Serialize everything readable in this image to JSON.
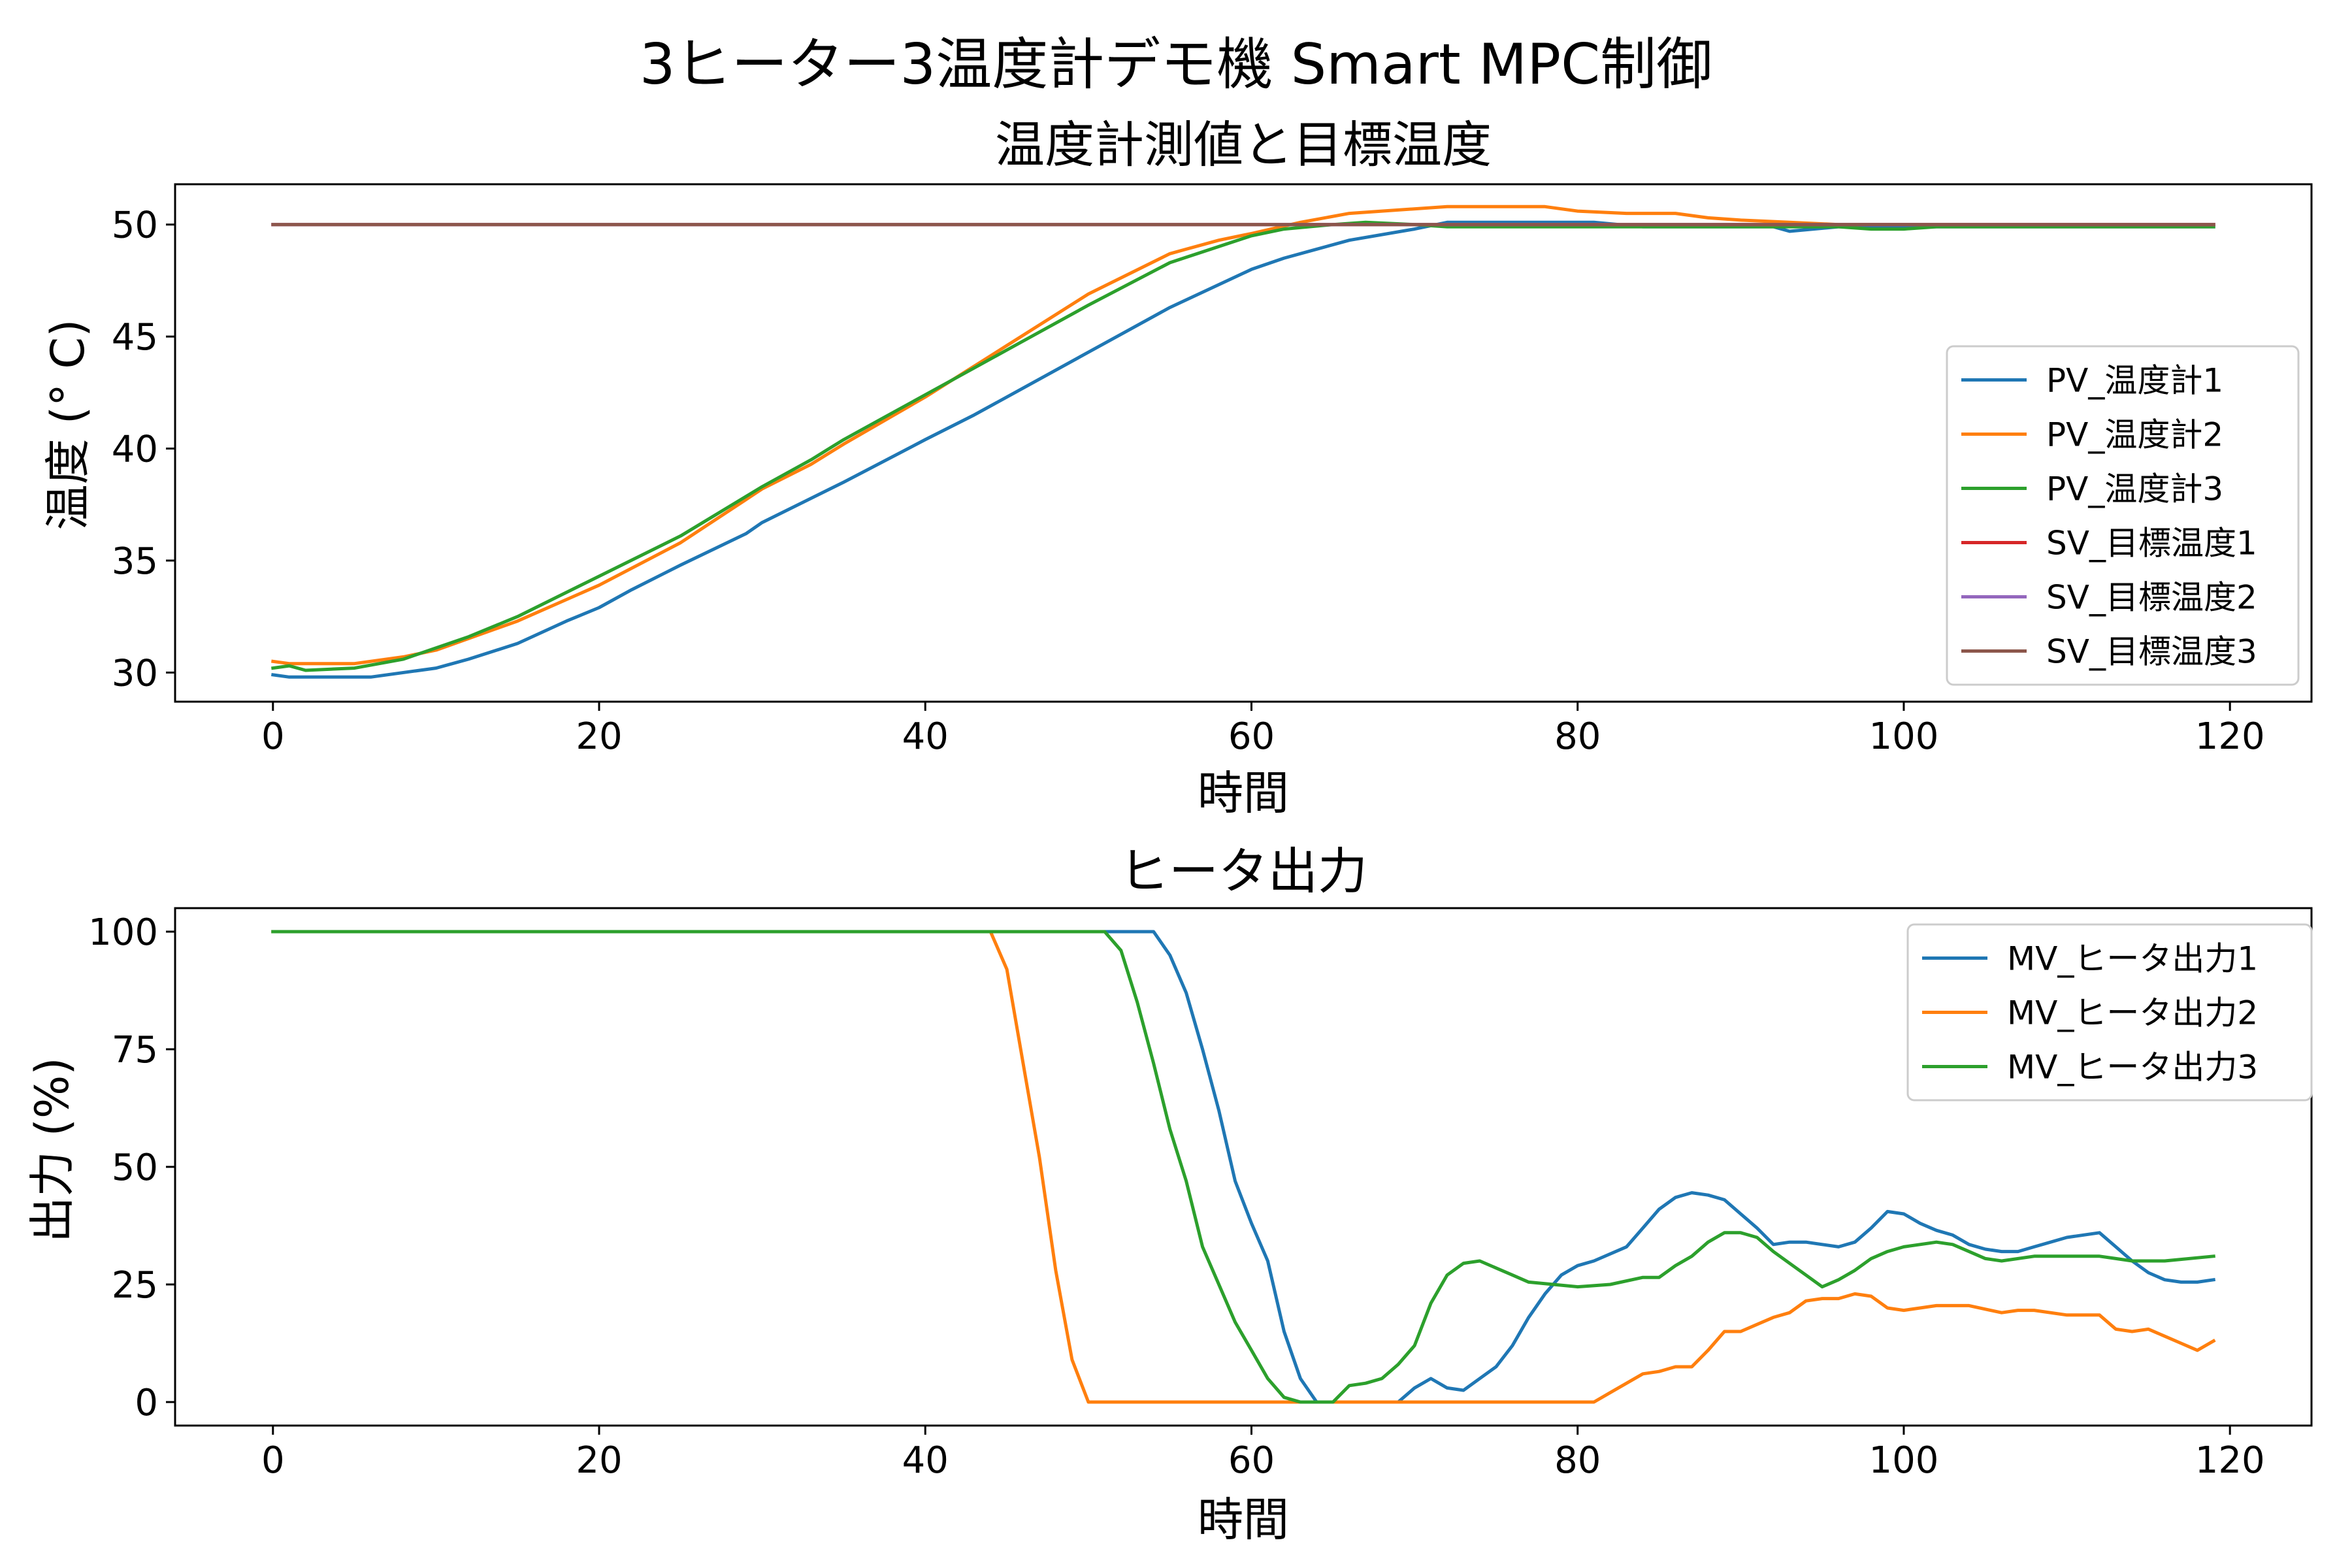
{
  "figure": {
    "suptitle": "3ヒーター3温度計デモ機 Smart MPC制御"
  },
  "chart_data": [
    {
      "type": "line",
      "title": "温度計測値と目標温度",
      "xlabel": "時間",
      "ylabel": "温度 (° C)",
      "xlim": [
        -6,
        125
      ],
      "ylim": [
        28.7,
        51.8
      ],
      "xticks": [
        0,
        20,
        40,
        60,
        80,
        100,
        120
      ],
      "yticks": [
        30,
        35,
        40,
        45,
        50
      ],
      "legend_position": "center-right",
      "series": [
        {
          "name": "PV_温度計1",
          "color": "#1f77b4",
          "points": [
            [
              0,
              29.9
            ],
            [
              1,
              29.8
            ],
            [
              6,
              29.8
            ],
            [
              10,
              30.2
            ],
            [
              12,
              30.6
            ],
            [
              15,
              31.3
            ],
            [
              18,
              32.3
            ],
            [
              20,
              32.9
            ],
            [
              22,
              33.7
            ],
            [
              25,
              34.8
            ],
            [
              29,
              36.2
            ],
            [
              30,
              36.7
            ],
            [
              35,
              38.5
            ],
            [
              40,
              40.4
            ],
            [
              43,
              41.5
            ],
            [
              45,
              42.3
            ],
            [
              50,
              44.3
            ],
            [
              55,
              46.3
            ],
            [
              60,
              48.0
            ],
            [
              62,
              48.5
            ],
            [
              66,
              49.3
            ],
            [
              70,
              49.8
            ],
            [
              72,
              50.1
            ],
            [
              81,
              50.1
            ],
            [
              84,
              49.9
            ],
            [
              92,
              49.9
            ],
            [
              93,
              49.7
            ],
            [
              96,
              49.9
            ],
            [
              119,
              49.9
            ]
          ]
        },
        {
          "name": "PV_温度計2",
          "color": "#ff7f0e",
          "points": [
            [
              0,
              30.5
            ],
            [
              1,
              30.4
            ],
            [
              5,
              30.4
            ],
            [
              8,
              30.7
            ],
            [
              10,
              31.0
            ],
            [
              15,
              32.3
            ],
            [
              20,
              33.9
            ],
            [
              25,
              35.8
            ],
            [
              30,
              38.2
            ],
            [
              33,
              39.3
            ],
            [
              35,
              40.2
            ],
            [
              40,
              42.3
            ],
            [
              45,
              44.6
            ],
            [
              50,
              46.9
            ],
            [
              55,
              48.7
            ],
            [
              56,
              48.9
            ],
            [
              58,
              49.3
            ],
            [
              60,
              49.6
            ],
            [
              63,
              50.1
            ],
            [
              66,
              50.5
            ],
            [
              68,
              50.6
            ],
            [
              72,
              50.8
            ],
            [
              78,
              50.8
            ],
            [
              80,
              50.6
            ],
            [
              83,
              50.5
            ],
            [
              86,
              50.5
            ],
            [
              88,
              50.3
            ],
            [
              90,
              50.2
            ],
            [
              93,
              50.1
            ],
            [
              96,
              50.0
            ],
            [
              119,
              50.0
            ]
          ]
        },
        {
          "name": "PV_温度計3",
          "color": "#2ca02c",
          "points": [
            [
              0,
              30.2
            ],
            [
              1,
              30.3
            ],
            [
              2,
              30.1
            ],
            [
              5,
              30.2
            ],
            [
              8,
              30.6
            ],
            [
              10,
              31.1
            ],
            [
              12,
              31.6
            ],
            [
              15,
              32.5
            ],
            [
              20,
              34.3
            ],
            [
              25,
              36.1
            ],
            [
              30,
              38.3
            ],
            [
              33,
              39.5
            ],
            [
              35,
              40.4
            ],
            [
              40,
              42.4
            ],
            [
              45,
              44.4
            ],
            [
              50,
              46.4
            ],
            [
              55,
              48.3
            ],
            [
              60,
              49.5
            ],
            [
              62,
              49.8
            ],
            [
              65,
              50.0
            ],
            [
              67,
              50.1
            ],
            [
              70,
              50.0
            ],
            [
              72,
              49.9
            ],
            [
              96,
              49.9
            ],
            [
              98,
              49.8
            ],
            [
              100,
              49.8
            ],
            [
              102,
              49.9
            ],
            [
              119,
              49.9
            ]
          ]
        },
        {
          "name": "SV_目標温度1",
          "color": "#d62728",
          "points": [
            [
              0,
              50
            ],
            [
              119,
              50
            ]
          ]
        },
        {
          "name": "SV_目標温度2",
          "color": "#9467bd",
          "points": [
            [
              0,
              50
            ],
            [
              119,
              50
            ]
          ]
        },
        {
          "name": "SV_目標温度3",
          "color": "#8c564b",
          "points": [
            [
              0,
              50
            ],
            [
              119,
              50
            ]
          ]
        }
      ]
    },
    {
      "type": "line",
      "title": "ヒータ出力",
      "xlabel": "時間",
      "ylabel": "出力 (%)",
      "xlim": [
        -6,
        125
      ],
      "ylim": [
        -5,
        105
      ],
      "xticks": [
        0,
        20,
        40,
        60,
        80,
        100,
        120
      ],
      "yticks": [
        0,
        25,
        50,
        75,
        100
      ],
      "legend_position": "top-right",
      "series": [
        {
          "name": "MV_ヒータ出力1",
          "color": "#1f77b4",
          "points": [
            [
              0,
              100
            ],
            [
              54,
              100
            ],
            [
              55,
              95
            ],
            [
              56,
              87
            ],
            [
              57,
              75
            ],
            [
              58,
              62
            ],
            [
              59,
              47
            ],
            [
              60,
              38
            ],
            [
              61,
              30
            ],
            [
              62,
              15
            ],
            [
              63,
              5
            ],
            [
              64,
              0
            ],
            [
              69,
              0
            ],
            [
              70,
              3
            ],
            [
              71,
              5
            ],
            [
              72,
              3
            ],
            [
              73,
              2.5
            ],
            [
              74,
              5
            ],
            [
              75,
              7.5
            ],
            [
              76,
              12
            ],
            [
              77,
              18
            ],
            [
              78,
              23
            ],
            [
              79,
              27
            ],
            [
              80,
              29
            ],
            [
              81,
              30
            ],
            [
              83,
              33
            ],
            [
              84,
              37
            ],
            [
              85,
              41
            ],
            [
              86,
              43.5
            ],
            [
              87,
              44.5
            ],
            [
              88,
              44
            ],
            [
              89,
              43
            ],
            [
              90,
              40
            ],
            [
              91,
              37
            ],
            [
              92,
              33.5
            ],
            [
              93,
              34
            ],
            [
              94,
              34
            ],
            [
              95,
              33.5
            ],
            [
              96,
              33
            ],
            [
              97,
              34
            ],
            [
              98,
              37
            ],
            [
              99,
              40.5
            ],
            [
              100,
              40
            ],
            [
              101,
              38
            ],
            [
              102,
              36.5
            ],
            [
              103,
              35.5
            ],
            [
              104,
              33.5
            ],
            [
              105,
              32.5
            ],
            [
              106,
              32
            ],
            [
              107,
              32
            ],
            [
              108,
              33
            ],
            [
              110,
              35
            ],
            [
              112,
              36
            ],
            [
              113,
              33
            ],
            [
              114,
              30
            ],
            [
              115,
              27.5
            ],
            [
              116,
              26
            ],
            [
              117,
              25.5
            ],
            [
              118,
              25.5
            ],
            [
              119,
              26
            ]
          ]
        },
        {
          "name": "MV_ヒータ出力2",
          "color": "#ff7f0e",
          "points": [
            [
              0,
              100
            ],
            [
              44,
              100
            ],
            [
              45,
              92
            ],
            [
              46,
              72
            ],
            [
              47,
              52
            ],
            [
              48,
              28
            ],
            [
              49,
              9
            ],
            [
              50,
              0
            ],
            [
              81,
              0
            ],
            [
              82,
              2
            ],
            [
              83,
              4
            ],
            [
              84,
              6
            ],
            [
              85,
              6.5
            ],
            [
              86,
              7.5
            ],
            [
              87,
              7.5
            ],
            [
              88,
              11
            ],
            [
              89,
              15
            ],
            [
              90,
              15
            ],
            [
              91,
              16.5
            ],
            [
              92,
              18
            ],
            [
              93,
              19
            ],
            [
              94,
              21.5
            ],
            [
              95,
              22
            ],
            [
              96,
              22
            ],
            [
              97,
              23
            ],
            [
              98,
              22.5
            ],
            [
              99,
              20
            ],
            [
              100,
              19.5
            ],
            [
              101,
              20
            ],
            [
              102,
              20.5
            ],
            [
              104,
              20.5
            ],
            [
              106,
              19
            ],
            [
              107,
              19.5
            ],
            [
              108,
              19.5
            ],
            [
              110,
              18.5
            ],
            [
              112,
              18.5
            ],
            [
              113,
              15.5
            ],
            [
              114,
              15
            ],
            [
              115,
              15.5
            ],
            [
              116,
              14
            ],
            [
              117,
              12.5
            ],
            [
              118,
              11
            ],
            [
              119,
              13
            ]
          ]
        },
        {
          "name": "MV_ヒータ出力3",
          "color": "#2ca02c",
          "points": [
            [
              0,
              100
            ],
            [
              51,
              100
            ],
            [
              52,
              96
            ],
            [
              53,
              85
            ],
            [
              54,
              72
            ],
            [
              55,
              58
            ],
            [
              56,
              47
            ],
            [
              57,
              33
            ],
            [
              58,
              25
            ],
            [
              59,
              17
            ],
            [
              60,
              11
            ],
            [
              61,
              5
            ],
            [
              62,
              1
            ],
            [
              63,
              0
            ],
            [
              65,
              0
            ],
            [
              66,
              3.5
            ],
            [
              67,
              4
            ],
            [
              68,
              5
            ],
            [
              69,
              8
            ],
            [
              70,
              12
            ],
            [
              71,
              21
            ],
            [
              72,
              27
            ],
            [
              73,
              29.5
            ],
            [
              74,
              30
            ],
            [
              75,
              28.5
            ],
            [
              76,
              27
            ],
            [
              77,
              25.5
            ],
            [
              80,
              24.5
            ],
            [
              82,
              25
            ],
            [
              84,
              26.5
            ],
            [
              85,
              26.5
            ],
            [
              86,
              29
            ],
            [
              87,
              31
            ],
            [
              88,
              34
            ],
            [
              89,
              36
            ],
            [
              90,
              36
            ],
            [
              91,
              35
            ],
            [
              92,
              32
            ],
            [
              93,
              29.5
            ],
            [
              94,
              27
            ],
            [
              95,
              24.5
            ],
            [
              96,
              26
            ],
            [
              97,
              28
            ],
            [
              98,
              30.5
            ],
            [
              99,
              32
            ],
            [
              100,
              33
            ],
            [
              101,
              33.5
            ],
            [
              102,
              34
            ],
            [
              103,
              33.5
            ],
            [
              104,
              32
            ],
            [
              105,
              30.5
            ],
            [
              106,
              30
            ],
            [
              108,
              31
            ],
            [
              110,
              31
            ],
            [
              112,
              31
            ],
            [
              113,
              30.5
            ],
            [
              114,
              30
            ],
            [
              116,
              30
            ],
            [
              119,
              31
            ]
          ]
        }
      ]
    }
  ]
}
